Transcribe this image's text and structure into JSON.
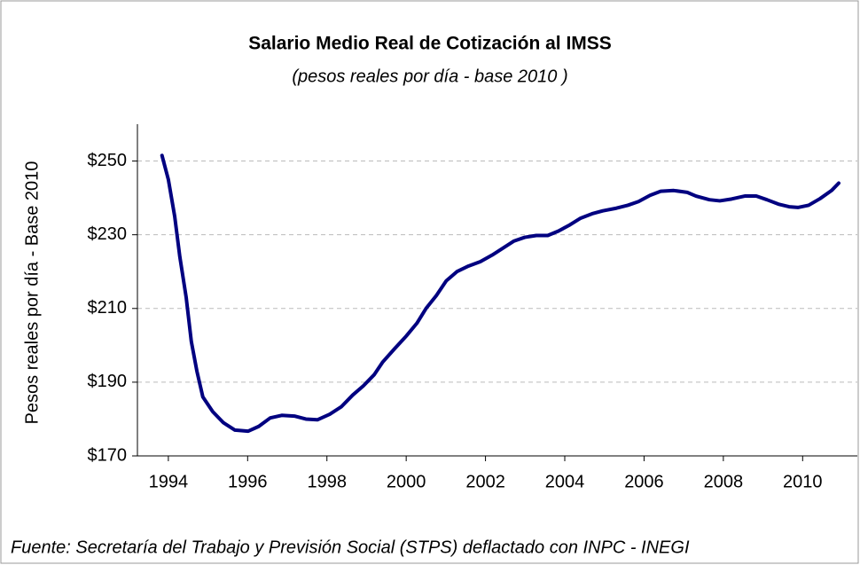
{
  "chart_data": {
    "type": "line",
    "title": "Salario Medio Real de Cotización al IMSS",
    "subtitle": "(pesos reales por día - base 2010 )",
    "y_label": "Pesos reales por día - Base 2010",
    "source": "Fuente: Secretaría del Trabajo y Previsión Social (STPS) deflactado con INPC - INEGI",
    "x": [
      1993.84,
      1994.0,
      1994.16,
      1994.29,
      1994.45,
      1994.58,
      1994.72,
      1994.87,
      1995.12,
      1995.39,
      1995.68,
      1996.01,
      1996.28,
      1996.57,
      1996.86,
      1997.18,
      1997.47,
      1997.76,
      1998.07,
      1998.36,
      1998.65,
      1998.92,
      1999.19,
      1999.41,
      1999.7,
      2000.0,
      2000.27,
      2000.5,
      2000.76,
      2001.01,
      2001.28,
      2001.57,
      2001.87,
      2002.17,
      2002.46,
      2002.72,
      2002.99,
      2003.28,
      2003.57,
      2003.84,
      2004.13,
      2004.4,
      2004.69,
      2004.96,
      2005.3,
      2005.59,
      2005.86,
      2006.15,
      2006.42,
      2006.75,
      2007.09,
      2007.31,
      2007.65,
      2007.91,
      2008.21,
      2008.54,
      2008.83,
      2009.1,
      2009.39,
      2009.66,
      2009.88,
      2010.15,
      2010.44,
      2010.73,
      2010.91
    ],
    "series": [
      {
        "name": "Salario Medio Real",
        "color": "#000080",
        "values": [
          251.5,
          245,
          235,
          224,
          213,
          201,
          193,
          186,
          182,
          179,
          177,
          176.7,
          178,
          180.3,
          181,
          180.8,
          180,
          179.8,
          181.3,
          183.3,
          186.5,
          189,
          192,
          195.5,
          199,
          202.5,
          206,
          210,
          213.5,
          217.5,
          220,
          221.5,
          222.7,
          224.5,
          226.5,
          228.3,
          229.3,
          229.8,
          229.8,
          231,
          232.7,
          234.5,
          235.7,
          236.5,
          237.2,
          238,
          239,
          240.7,
          241.8,
          242,
          241.5,
          240.5,
          239.5,
          239.2,
          239.7,
          240.5,
          240.5,
          239.5,
          238.3,
          237.6,
          237.4,
          238,
          239.8,
          242,
          244
        ]
      }
    ],
    "xlim": [
      1993.22,
      2011.38
    ],
    "xticks": [
      1994,
      1996,
      1998,
      2000,
      2002,
      2004,
      2006,
      2008,
      2010
    ],
    "ylim": [
      170,
      260
    ],
    "yticks": [
      {
        "value": 170,
        "label": "$170"
      },
      {
        "value": 190,
        "label": "$190"
      },
      {
        "value": 210,
        "label": "$210"
      },
      {
        "value": 230,
        "label": "$230"
      },
      {
        "value": 250,
        "label": "$250"
      }
    ],
    "grid": true
  }
}
